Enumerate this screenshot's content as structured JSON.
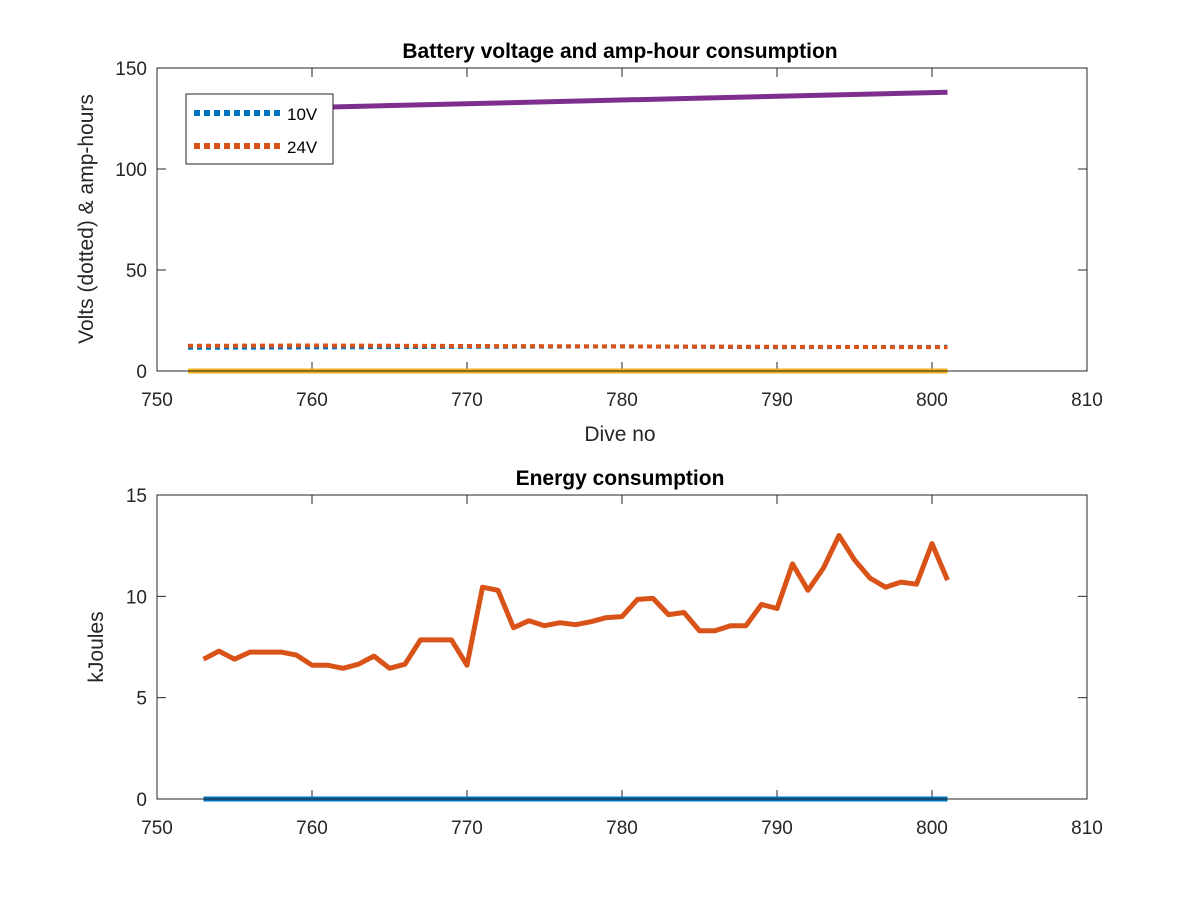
{
  "chart_data": [
    {
      "type": "line",
      "title": "Battery voltage and amp-hour consumption",
      "xlabel": "Dive no",
      "ylabel": "Volts (dotted) & amp-hours",
      "xlim": [
        750,
        810
      ],
      "ylim": [
        0,
        150
      ],
      "xticks": [
        "750",
        "760",
        "770",
        "780",
        "790",
        "800",
        "810"
      ],
      "yticks": [
        "0",
        "50",
        "100",
        "150"
      ],
      "legend": {
        "placement": "top-left",
        "entries": [
          "10V",
          "24V"
        ]
      },
      "series": [
        {
          "name": "10V",
          "style": "dotted",
          "color": "#0072BD",
          "x": [
            752,
            760,
            770,
            780,
            790,
            801
          ],
          "y": [
            11.5,
            11.7,
            12.0,
            12.2,
            11.8,
            12.0
          ]
        },
        {
          "name": "24V",
          "style": "dotted",
          "color": "#D95319",
          "x": [
            752,
            760,
            770,
            780,
            790,
            801
          ],
          "y": [
            12.5,
            12.6,
            12.4,
            12.2,
            12.0,
            11.8
          ]
        },
        {
          "style": "solid",
          "color": "#7E2F8E",
          "x": [
            752,
            801
          ],
          "y": [
            129,
            138
          ]
        },
        {
          "style": "solid",
          "color": "#EDB120",
          "x": [
            752,
            801
          ],
          "y": [
            0,
            0
          ]
        }
      ]
    },
    {
      "type": "line",
      "title": "Energy consumption",
      "xlabel": "",
      "ylabel": "kJoules",
      "xlim": [
        750,
        810
      ],
      "ylim": [
        0,
        15
      ],
      "xticks": [
        "750",
        "760",
        "770",
        "780",
        "790",
        "800",
        "810"
      ],
      "yticks": [
        "0",
        "5",
        "10",
        "15"
      ],
      "series": [
        {
          "style": "solid",
          "color": "#0072BD",
          "x": [
            753,
            801
          ],
          "y": [
            0,
            0
          ]
        },
        {
          "style": "solid",
          "color": "#D95319",
          "x": [
            753,
            754,
            755,
            756,
            757,
            758,
            759,
            760,
            761,
            762,
            763,
            764,
            765,
            766,
            767,
            768,
            769,
            770,
            771,
            772,
            773,
            774,
            775,
            776,
            777,
            778,
            779,
            780,
            781,
            782,
            783,
            784,
            785,
            786,
            787,
            788,
            789,
            790,
            791,
            792,
            793,
            794,
            795,
            796,
            797,
            798,
            799,
            800,
            801
          ],
          "y": [
            6.9,
            7.3,
            6.9,
            7.25,
            7.25,
            7.25,
            7.1,
            6.6,
            6.6,
            6.45,
            6.65,
            7.05,
            6.45,
            6.65,
            7.85,
            7.85,
            7.85,
            6.6,
            10.45,
            10.3,
            8.45,
            8.8,
            8.55,
            8.7,
            8.6,
            8.75,
            8.95,
            9.0,
            9.85,
            9.9,
            9.1,
            9.2,
            8.3,
            8.3,
            8.55,
            8.55,
            9.6,
            9.4,
            11.6,
            10.3,
            11.4,
            13.0,
            11.8,
            10.9,
            10.45,
            10.7,
            10.6,
            12.6,
            10.8
          ]
        }
      ]
    }
  ]
}
